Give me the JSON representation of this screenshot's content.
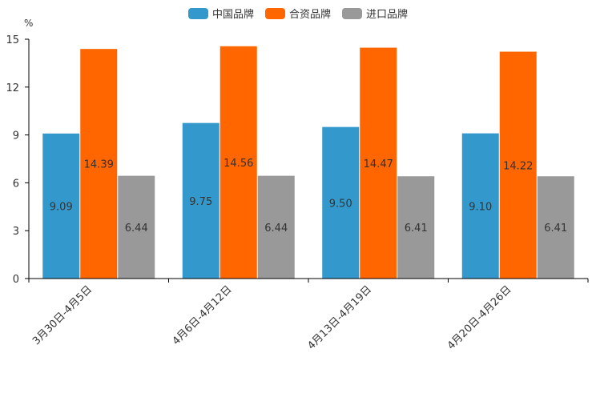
{
  "chart_data": {
    "type": "bar",
    "unit": "%",
    "categories": [
      "3月30日-4月5日",
      "4月6日-4月12日",
      "4月13日-4月19日",
      "4月20日-4月26日"
    ],
    "series": [
      {
        "name": "中国品牌",
        "color": "#3399cc",
        "values": [
          9.09,
          9.75,
          9.5,
          9.1
        ],
        "labels": [
          "9.09",
          "9.75",
          "9.50",
          "9.10"
        ]
      },
      {
        "name": "合资品牌",
        "color": "#ff6600",
        "values": [
          14.39,
          14.56,
          14.47,
          14.22
        ],
        "labels": [
          "14.39",
          "14.56",
          "14.47",
          "14.22"
        ]
      },
      {
        "name": "进口品牌",
        "color": "#999999",
        "values": [
          6.44,
          6.44,
          6.41,
          6.41
        ],
        "labels": [
          "6.44",
          "6.44",
          "6.41",
          "6.41"
        ]
      }
    ],
    "yticks": [
      "0",
      "3",
      "6",
      "9",
      "12",
      "15"
    ],
    "ylim": [
      0,
      15
    ],
    "legend_position": "top-center",
    "grid": false
  }
}
